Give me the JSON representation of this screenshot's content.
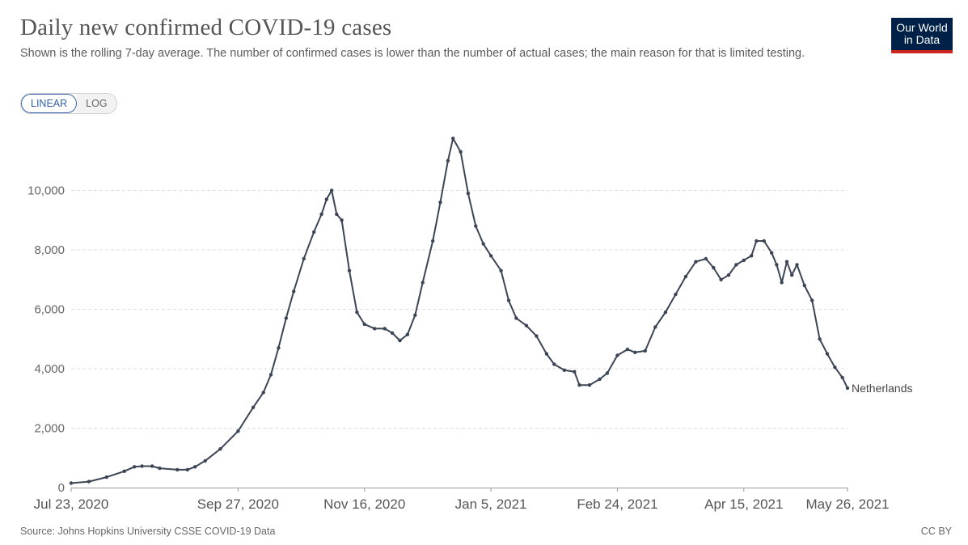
{
  "header": {
    "title": "Daily new confirmed COVID-19 cases",
    "subtitle": "Shown is the rolling 7-day average. The number of confirmed cases is lower than the number of actual cases; the main reason for that is limited testing."
  },
  "logo": {
    "line1": "Our World",
    "line2": "in Data"
  },
  "scale_toggle": {
    "linear_label": "LINEAR",
    "log_label": "LOG",
    "selected": "LINEAR"
  },
  "footer": {
    "source": "Source: Johns Hopkins University CSSE COVID-19 Data",
    "license": "CC BY"
  },
  "colors": {
    "series": "#3b4554",
    "grid": "#dddddd",
    "logo_bg": "#002147",
    "logo_accent": "#ce261e",
    "toggle_active": "#3360a9"
  },
  "chart_data": {
    "type": "line",
    "title": "Daily new confirmed COVID-19 cases",
    "xlabel": "",
    "ylabel": "",
    "x_start": "Jul 23, 2020",
    "x_end": "May 26, 2021",
    "xlim": [
      "2020-07-23",
      "2021-05-26"
    ],
    "ylim": [
      0,
      12000
    ],
    "y_ticks": [
      0,
      2000,
      4000,
      6000,
      8000,
      10000
    ],
    "y_tick_labels": [
      "0",
      "2,000",
      "4,000",
      "6,000",
      "8,000",
      "10,000"
    ],
    "x_ticks": [
      "2020-07-23",
      "2020-09-27",
      "2020-11-16",
      "2021-01-05",
      "2021-02-24",
      "2021-04-15",
      "2021-05-26"
    ],
    "x_tick_labels": [
      "Jul 23, 2020",
      "Sep 27, 2020",
      "Nov 16, 2020",
      "Jan 5, 2021",
      "Feb 24, 2021",
      "Apr 15, 2021",
      "May 26, 2021"
    ],
    "grid": "horizontal dashed",
    "series": [
      {
        "name": "Netherlands",
        "points": [
          [
            "2020-07-23",
            150
          ],
          [
            "2020-07-30",
            200
          ],
          [
            "2020-08-06",
            350
          ],
          [
            "2020-08-13",
            550
          ],
          [
            "2020-08-17",
            700
          ],
          [
            "2020-08-20",
            720
          ],
          [
            "2020-08-24",
            720
          ],
          [
            "2020-08-27",
            650
          ],
          [
            "2020-09-03",
            600
          ],
          [
            "2020-09-07",
            600
          ],
          [
            "2020-09-10",
            700
          ],
          [
            "2020-09-14",
            900
          ],
          [
            "2020-09-20",
            1300
          ],
          [
            "2020-09-27",
            1900
          ],
          [
            "2020-10-03",
            2700
          ],
          [
            "2020-10-07",
            3200
          ],
          [
            "2020-10-10",
            3800
          ],
          [
            "2020-10-13",
            4700
          ],
          [
            "2020-10-16",
            5700
          ],
          [
            "2020-10-19",
            6600
          ],
          [
            "2020-10-23",
            7700
          ],
          [
            "2020-10-27",
            8600
          ],
          [
            "2020-10-30",
            9200
          ],
          [
            "2020-11-01",
            9700
          ],
          [
            "2020-11-03",
            10000
          ],
          [
            "2020-11-05",
            9200
          ],
          [
            "2020-11-07",
            9000
          ],
          [
            "2020-11-10",
            7300
          ],
          [
            "2020-11-13",
            5900
          ],
          [
            "2020-11-16",
            5500
          ],
          [
            "2020-11-20",
            5350
          ],
          [
            "2020-11-24",
            5350
          ],
          [
            "2020-11-27",
            5200
          ],
          [
            "2020-11-30",
            4950
          ],
          [
            "2020-12-03",
            5150
          ],
          [
            "2020-12-06",
            5800
          ],
          [
            "2020-12-09",
            6900
          ],
          [
            "2020-12-13",
            8300
          ],
          [
            "2020-12-16",
            9600
          ],
          [
            "2020-12-19",
            11000
          ],
          [
            "2020-12-21",
            11750
          ],
          [
            "2020-12-24",
            11300
          ],
          [
            "2020-12-27",
            9900
          ],
          [
            "2020-12-30",
            8800
          ],
          [
            "2021-01-02",
            8200
          ],
          [
            "2021-01-05",
            7800
          ],
          [
            "2021-01-09",
            7300
          ],
          [
            "2021-01-12",
            6300
          ],
          [
            "2021-01-15",
            5700
          ],
          [
            "2021-01-19",
            5450
          ],
          [
            "2021-01-23",
            5100
          ],
          [
            "2021-01-27",
            4500
          ],
          [
            "2021-01-30",
            4150
          ],
          [
            "2021-02-03",
            3950
          ],
          [
            "2021-02-07",
            3900
          ],
          [
            "2021-02-09",
            3450
          ],
          [
            "2021-02-13",
            3450
          ],
          [
            "2021-02-17",
            3650
          ],
          [
            "2021-02-20",
            3850
          ],
          [
            "2021-02-24",
            4450
          ],
          [
            "2021-02-28",
            4650
          ],
          [
            "2021-03-03",
            4550
          ],
          [
            "2021-03-07",
            4600
          ],
          [
            "2021-03-11",
            5400
          ],
          [
            "2021-03-15",
            5900
          ],
          [
            "2021-03-19",
            6500
          ],
          [
            "2021-03-23",
            7100
          ],
          [
            "2021-03-27",
            7600
          ],
          [
            "2021-03-31",
            7700
          ],
          [
            "2021-04-03",
            7400
          ],
          [
            "2021-04-06",
            7000
          ],
          [
            "2021-04-09",
            7150
          ],
          [
            "2021-04-12",
            7500
          ],
          [
            "2021-04-15",
            7650
          ],
          [
            "2021-04-18",
            7800
          ],
          [
            "2021-04-20",
            8300
          ],
          [
            "2021-04-23",
            8300
          ],
          [
            "2021-04-26",
            7900
          ],
          [
            "2021-04-28",
            7500
          ],
          [
            "2021-04-30",
            6900
          ],
          [
            "2021-05-02",
            7600
          ],
          [
            "2021-05-04",
            7150
          ],
          [
            "2021-05-06",
            7500
          ],
          [
            "2021-05-09",
            6800
          ],
          [
            "2021-05-12",
            6300
          ],
          [
            "2021-05-15",
            5000
          ],
          [
            "2021-05-18",
            4500
          ],
          [
            "2021-05-21",
            4050
          ],
          [
            "2021-05-24",
            3700
          ],
          [
            "2021-05-26",
            3350
          ]
        ]
      }
    ]
  }
}
